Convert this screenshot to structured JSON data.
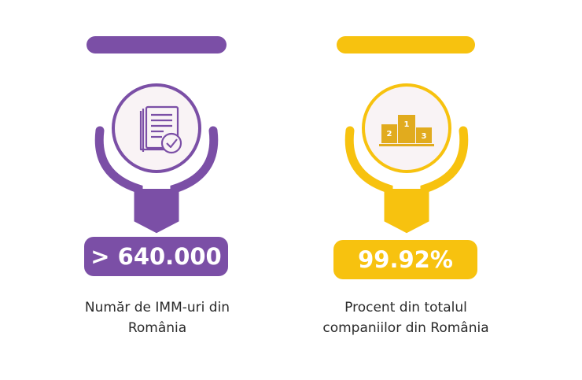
{
  "colors": {
    "purple": "#7b4fa6",
    "yellow": "#f7c20f",
    "circle_fill": "#f9f3f5"
  },
  "stats": [
    {
      "value": "> 640.000",
      "caption_line1": "Număr de IMM-uri din",
      "caption_line2": "România",
      "icon": "document-checklist-icon"
    },
    {
      "value": "99.92%",
      "caption_line1": "Procent din totalul",
      "caption_line2": "companiilor din România",
      "icon": "podium-icon"
    }
  ]
}
